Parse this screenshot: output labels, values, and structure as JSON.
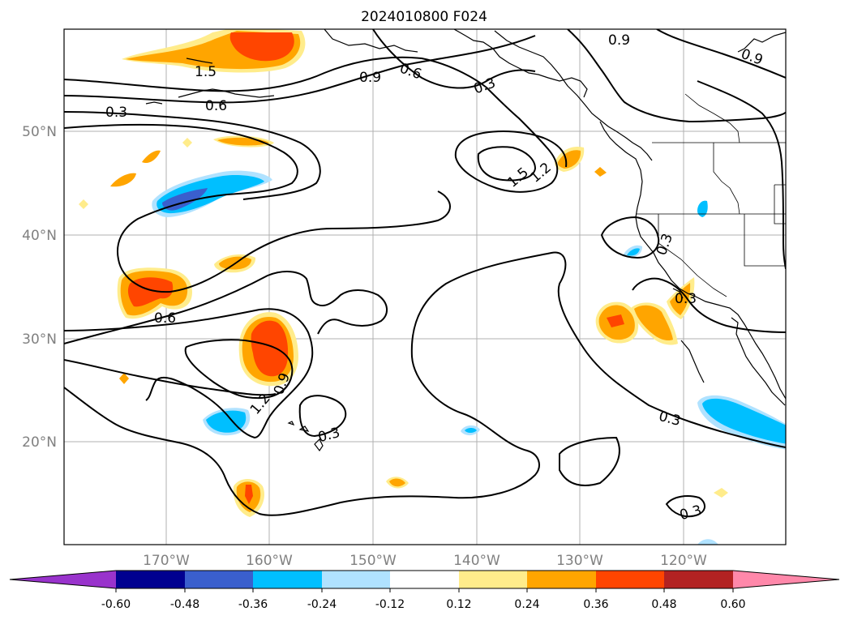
{
  "title": "2024010800 F024",
  "lat_labels": [
    "50°N",
    "40°N",
    "30°N",
    "20°N"
  ],
  "lon_labels": [
    "170°W",
    "160°W",
    "150°W",
    "140°W",
    "130°W",
    "120°W"
  ],
  "contour_labels": [
    "1.5",
    "0.6",
    "0.9",
    "0.6",
    "0.3",
    "0.9",
    "0.9",
    "0.3",
    "1.5",
    "1.2",
    "0.6",
    "0.9",
    "1.2",
    "0.3",
    "0.3",
    "0.3",
    "0.3",
    "0.3"
  ],
  "colorbar": {
    "tick_labels": [
      "-0.60",
      "-0.48",
      "-0.36",
      "-0.24",
      "-0.12",
      "0.12",
      "0.24",
      "0.36",
      "0.48",
      "0.60"
    ],
    "colors": [
      "#9933cc",
      "#000090",
      "#3a5fcd",
      "#00bfff",
      "#b0e2ff",
      "#ffffff",
      "#ffec8b",
      "#ffa500",
      "#ff4500",
      "#b22222",
      "#ff88aa"
    ]
  }
}
